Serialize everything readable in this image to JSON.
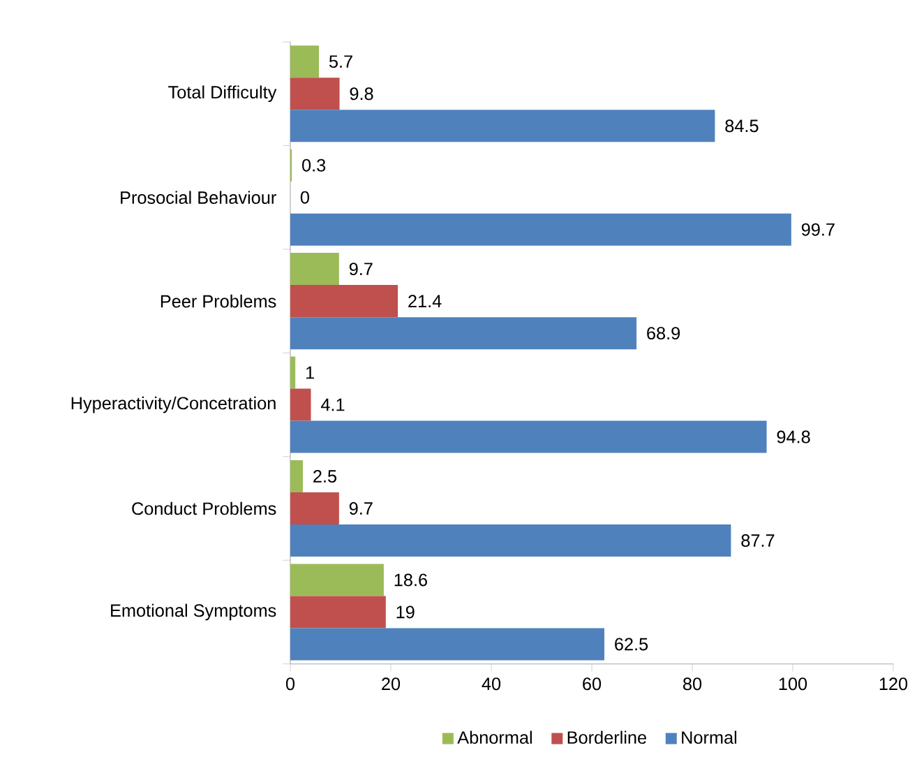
{
  "chart_data": {
    "type": "bar",
    "orientation": "horizontal",
    "categories": [
      "Total Difficulty",
      "Prosocial Behaviour",
      "Peer Problems",
      "Hyperactivity/Concetration",
      "Conduct Problems",
      "Emotional Symptoms"
    ],
    "series": [
      {
        "name": "Abnormal",
        "color": "#9bbb59",
        "values": [
          5.7,
          0.3,
          9.7,
          1,
          2.5,
          18.6
        ]
      },
      {
        "name": "Borderline",
        "color": "#c0504d",
        "values": [
          9.8,
          0,
          21.4,
          4.1,
          9.7,
          19
        ]
      },
      {
        "name": "Normal",
        "color": "#4f81bd",
        "values": [
          84.5,
          99.7,
          68.9,
          94.8,
          87.7,
          62.5
        ]
      }
    ],
    "xlim": [
      0,
      120
    ],
    "xticks": [
      0,
      20,
      40,
      60,
      80,
      100,
      120
    ],
    "data_labels": true,
    "legend": "bottom",
    "grid": false
  }
}
